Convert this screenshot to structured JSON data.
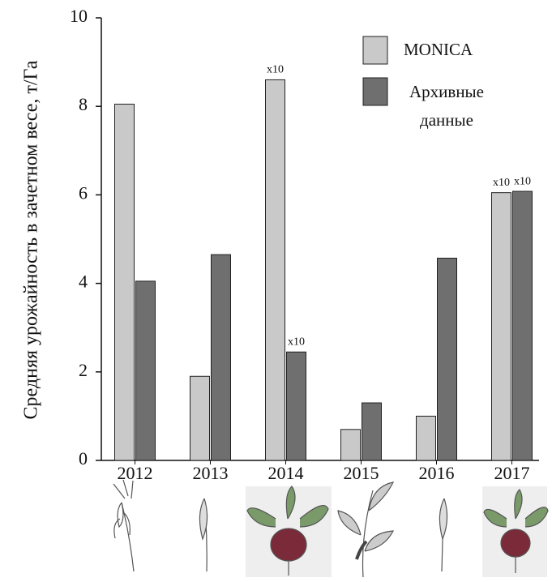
{
  "chart_data": {
    "type": "bar",
    "y_label": "Средняя урожайность в зачетном весе, т/Га",
    "categories": [
      "2012",
      "2013",
      "2014",
      "2015",
      "2016",
      "2017"
    ],
    "series": [
      {
        "name": "MONICA",
        "color": "#c9c9c9",
        "values": [
          8.05,
          1.9,
          8.6,
          0.7,
          1.0,
          6.05
        ]
      },
      {
        "name": "Архивные данные",
        "color": "#6f6f6f",
        "values": [
          4.05,
          4.65,
          2.45,
          1.3,
          4.57,
          6.08
        ]
      }
    ],
    "annotations": [
      {
        "text": "x10",
        "series": 0,
        "category": 2
      },
      {
        "text": "x10",
        "series": 1,
        "category": 2
      },
      {
        "text": "x10",
        "series": 0,
        "category": 5
      },
      {
        "text": "x10",
        "series": 1,
        "category": 5
      }
    ],
    "ylim": [
      0,
      10
    ],
    "yticks": [
      0,
      2,
      4,
      6,
      8,
      10
    ],
    "grid": false,
    "legend": "upper right"
  }
}
